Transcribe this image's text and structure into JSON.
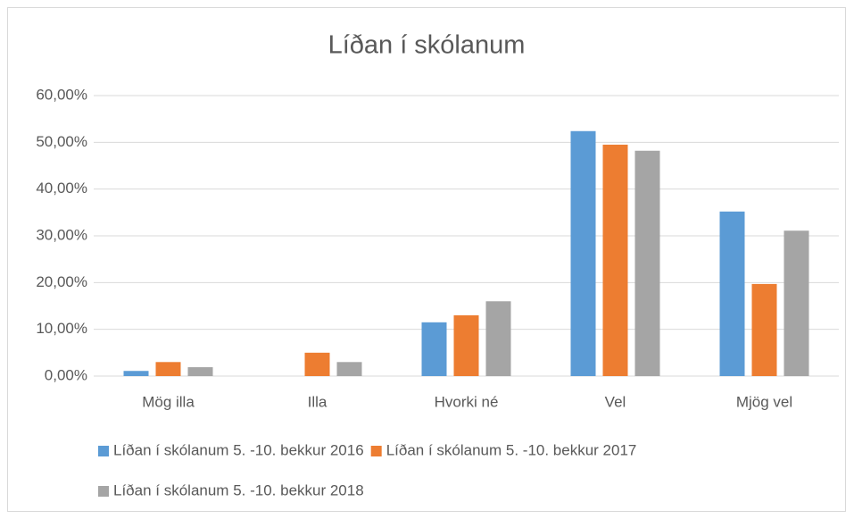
{
  "chart_data": {
    "type": "bar",
    "title": "Líðan í skólanum",
    "categories": [
      "Mög illa",
      "Illa",
      "Hvorki né",
      "Vel",
      "Mjög vel"
    ],
    "series": [
      {
        "name": "Líðan í skólanum 5. -10. bekkur 2016",
        "color": "#5b9bd5",
        "values": [
          1.1,
          0,
          11.5,
          52.4,
          35.2
        ]
      },
      {
        "name": "Líðan í skólanum 5. -10. bekkur 2017",
        "color": "#ed7d31",
        "values": [
          3.0,
          5.0,
          13.0,
          49.5,
          19.7
        ]
      },
      {
        "name": "Líðan í skólanum 5. -10. bekkur 2018",
        "color": "#a5a5a5",
        "values": [
          1.9,
          3.0,
          16.0,
          48.2,
          31.1
        ]
      }
    ],
    "ylim": [
      0,
      60
    ],
    "yticks": [
      {
        "value": 0,
        "label": "0,00%"
      },
      {
        "value": 10,
        "label": "10,00%"
      },
      {
        "value": 20,
        "label": "20,00%"
      },
      {
        "value": 30,
        "label": "30,00%"
      },
      {
        "value": 40,
        "label": "40,00%"
      },
      {
        "value": 50,
        "label": "50,00%"
      },
      {
        "value": 60,
        "label": "60,00%"
      }
    ],
    "grid": true,
    "legend": "bottom"
  }
}
